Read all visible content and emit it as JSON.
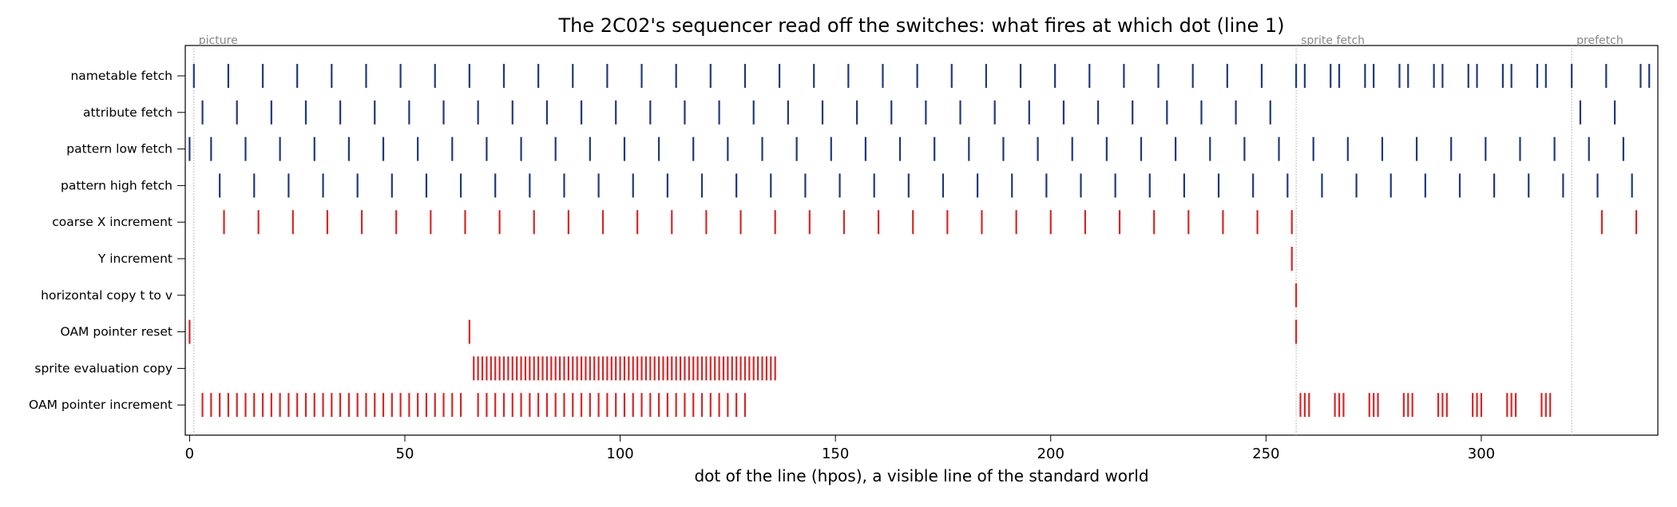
{
  "chart_data": {
    "type": "event-raster",
    "title": "The 2C02's sequencer read off the switches: what fires at which dot (line 1)",
    "xlabel": "dot of the line (hpos), a visible line of the standard world",
    "ylabel": "",
    "xlim": [
      -1,
      341
    ],
    "xticks": [
      0,
      50,
      100,
      150,
      200,
      250,
      300
    ],
    "grid": false,
    "regions": [
      {
        "label": "picture",
        "x": 1
      },
      {
        "label": "sprite fetch",
        "x": 257
      },
      {
        "label": "prefetch",
        "x": 321
      }
    ],
    "colors": {
      "fetch": "#1f3a7a",
      "control": "#d62728",
      "divider": "#aaaaaa"
    },
    "series": [
      {
        "name": "nametable fetch",
        "color": "fetch",
        "events": [
          1,
          9,
          17,
          25,
          33,
          41,
          49,
          57,
          65,
          73,
          81,
          89,
          97,
          105,
          113,
          121,
          129,
          137,
          145,
          153,
          161,
          169,
          177,
          185,
          193,
          201,
          209,
          217,
          225,
          233,
          241,
          249,
          257,
          259,
          265,
          267,
          273,
          275,
          281,
          283,
          289,
          291,
          297,
          299,
          305,
          307,
          313,
          315,
          321,
          329,
          337,
          339
        ]
      },
      {
        "name": "attribute fetch",
        "color": "fetch",
        "events": [
          3,
          11,
          19,
          27,
          35,
          43,
          51,
          59,
          67,
          75,
          83,
          91,
          99,
          107,
          115,
          123,
          131,
          139,
          147,
          155,
          163,
          171,
          179,
          187,
          195,
          203,
          211,
          219,
          227,
          235,
          243,
          251,
          323,
          331
        ]
      },
      {
        "name": "pattern low fetch",
        "color": "fetch",
        "events": [
          0,
          5,
          13,
          21,
          29,
          37,
          45,
          53,
          61,
          69,
          77,
          85,
          93,
          101,
          109,
          117,
          125,
          133,
          141,
          149,
          157,
          165,
          173,
          181,
          189,
          197,
          205,
          213,
          221,
          229,
          237,
          245,
          253,
          261,
          269,
          277,
          285,
          293,
          301,
          309,
          317,
          325,
          333
        ]
      },
      {
        "name": "pattern high fetch",
        "color": "fetch",
        "events": [
          7,
          15,
          23,
          31,
          39,
          47,
          55,
          63,
          71,
          79,
          87,
          95,
          103,
          111,
          119,
          127,
          135,
          143,
          151,
          159,
          167,
          175,
          183,
          191,
          199,
          207,
          215,
          223,
          231,
          239,
          247,
          255,
          263,
          271,
          279,
          287,
          295,
          303,
          311,
          319,
          327,
          335
        ]
      },
      {
        "name": "coarse X increment",
        "color": "control",
        "events": [
          8,
          16,
          24,
          32,
          40,
          48,
          56,
          64,
          72,
          80,
          88,
          96,
          104,
          112,
          120,
          128,
          136,
          144,
          152,
          160,
          168,
          176,
          184,
          192,
          200,
          208,
          216,
          224,
          232,
          240,
          248,
          256,
          328,
          336
        ]
      },
      {
        "name": "Y increment",
        "color": "control",
        "events": [
          256
        ]
      },
      {
        "name": "horizontal copy t to v",
        "color": "control",
        "events": [
          257
        ]
      },
      {
        "name": "OAM pointer reset",
        "color": "control",
        "events": [
          0,
          65,
          257
        ]
      },
      {
        "name": "sprite evaluation copy",
        "color": "control",
        "range": [
          66,
          136
        ]
      },
      {
        "name": "OAM pointer increment",
        "color": "control",
        "ranges": [
          [
            3,
            63,
            2
          ],
          [
            67,
            129,
            2
          ]
        ],
        "events": [
          258,
          259,
          260,
          266,
          267,
          268,
          274,
          275,
          276,
          282,
          283,
          284,
          290,
          291,
          292,
          298,
          299,
          300,
          306,
          307,
          308,
          314,
          315,
          316
        ]
      }
    ]
  }
}
